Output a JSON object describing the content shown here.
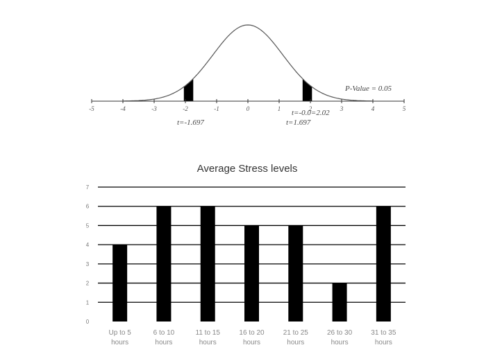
{
  "distribution": {
    "axis_ticks": [
      "-5",
      "-4",
      "-3",
      "-2",
      "-1",
      "0",
      "1",
      "2",
      "3",
      "4",
      "5"
    ],
    "p_value_label": "P-Value = 0.05",
    "t_critical_left": "t=-1.697",
    "t_critical_right": "t=1.697",
    "t_observed_label": "t=-0.0=2.02",
    "colors": {
      "curve": "#555555",
      "tail": "#000000",
      "axis": "#333333"
    }
  },
  "chart_data": {
    "type": "bar",
    "title": "Average Stress levels",
    "categories": [
      [
        "Up to 5",
        "hours"
      ],
      [
        "6 to 10",
        "hours"
      ],
      [
        "11 to 15",
        "hours"
      ],
      [
        "16 to 20",
        "hours"
      ],
      [
        "21 to 25",
        "hours"
      ],
      [
        "26 to 30",
        "hours"
      ],
      [
        "31 to 35",
        "hours"
      ]
    ],
    "values": [
      4,
      6,
      6,
      5,
      5,
      2,
      6
    ],
    "ylim": [
      0,
      7
    ],
    "yticks": [
      "0",
      "1",
      "2",
      "3",
      "4",
      "5",
      "6",
      "7"
    ],
    "grid": true,
    "colors": {
      "bar": "#000000",
      "grid": "#000000"
    }
  }
}
